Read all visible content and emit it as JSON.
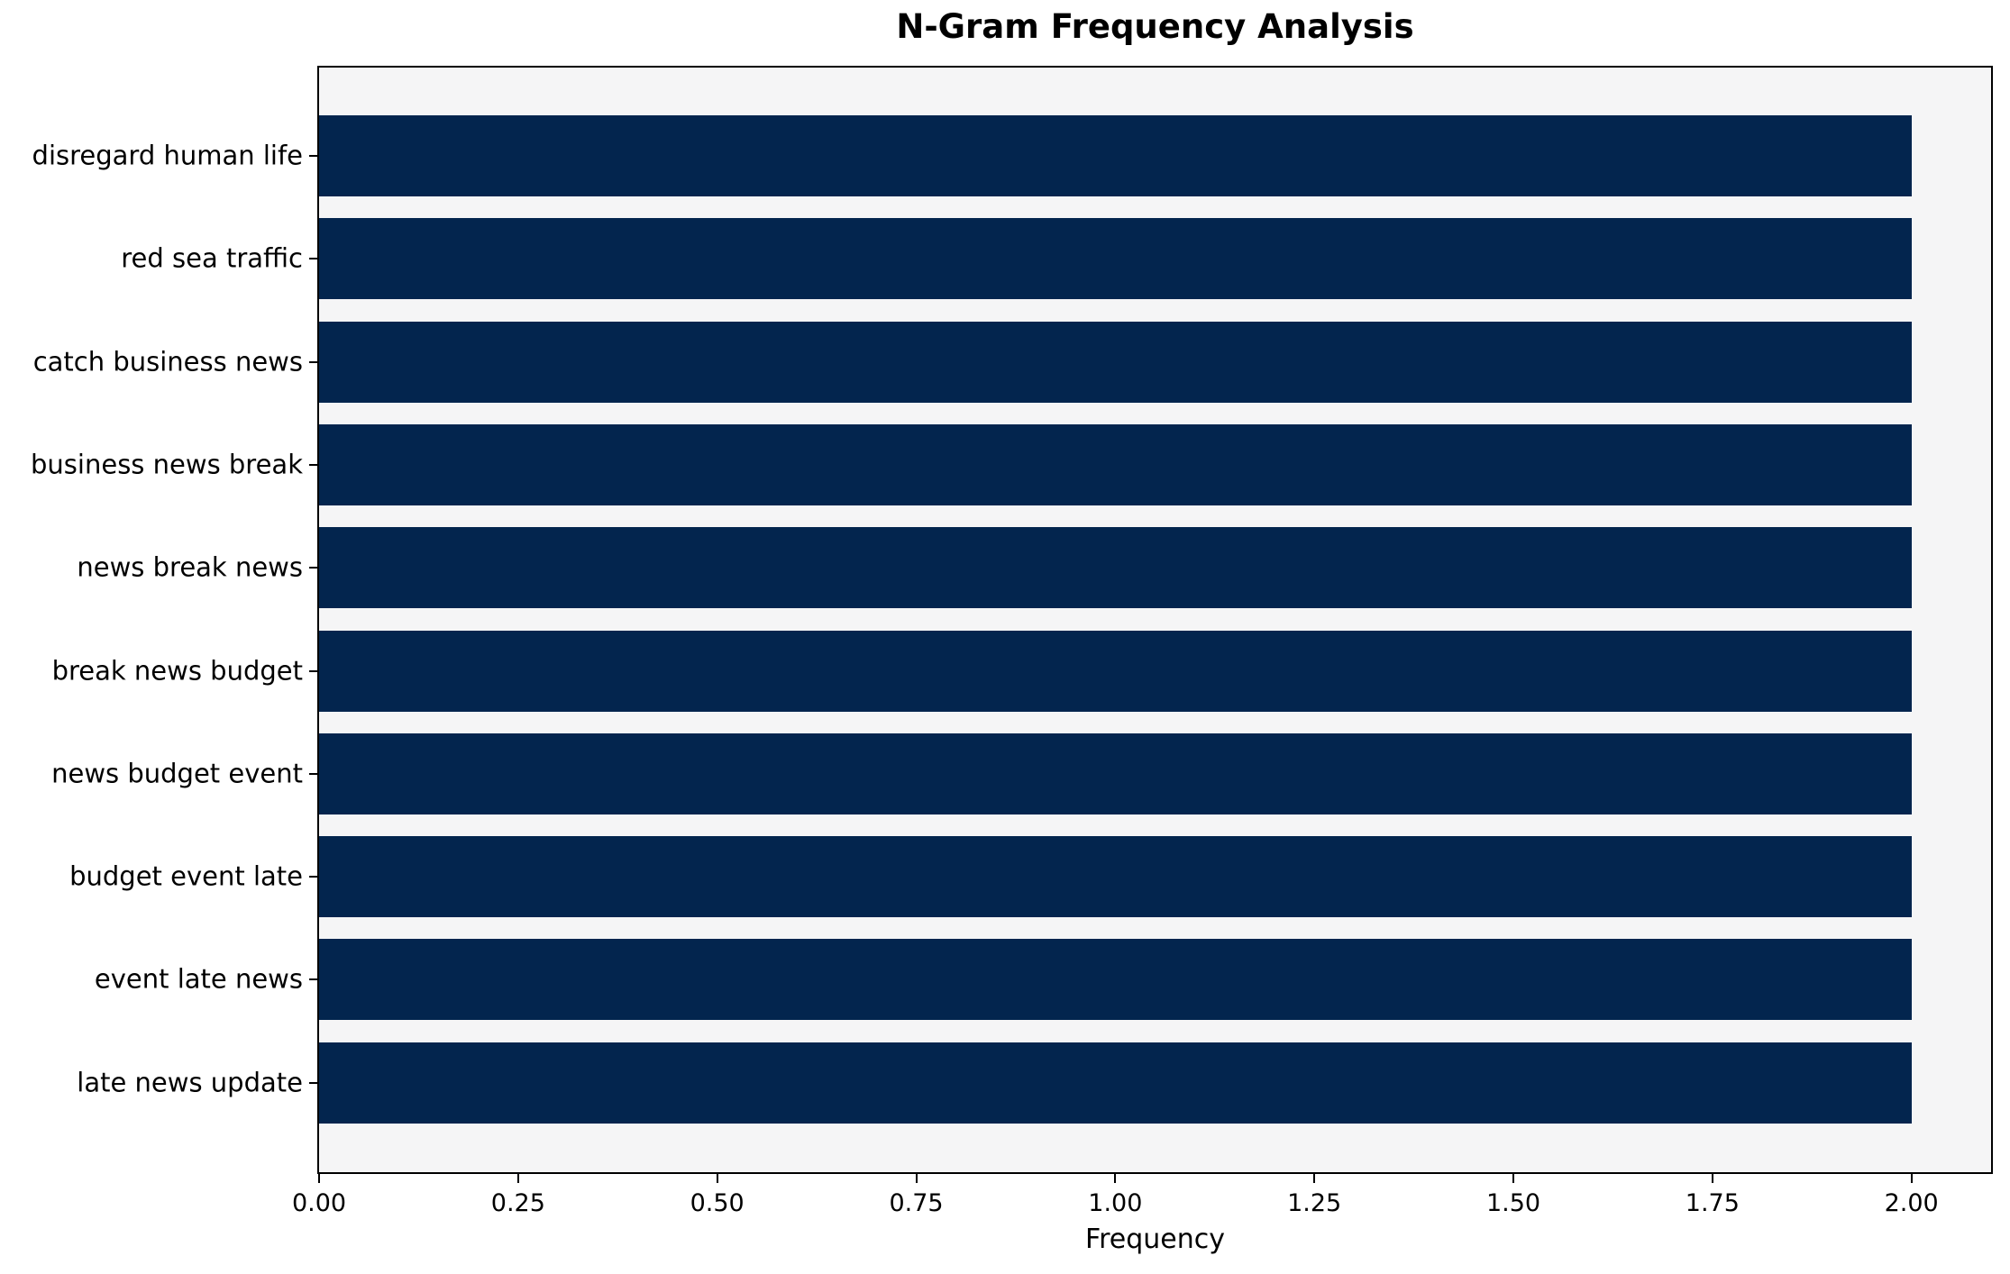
{
  "chart_data": {
    "type": "bar",
    "orientation": "horizontal",
    "title": "N-Gram Frequency Analysis",
    "xlabel": "Frequency",
    "ylabel": "",
    "categories": [
      "disregard human life",
      "red sea traffic",
      "catch business news",
      "business news break",
      "news break news",
      "break news budget",
      "news budget event",
      "budget event late",
      "event late news",
      "late news update"
    ],
    "values": [
      2,
      2,
      2,
      2,
      2,
      2,
      2,
      2,
      2,
      2
    ],
    "xlim": [
      0,
      2.1
    ],
    "xticks": [
      {
        "value": 0.0,
        "label": "0.00"
      },
      {
        "value": 0.25,
        "label": "0.25"
      },
      {
        "value": 0.5,
        "label": "0.50"
      },
      {
        "value": 0.75,
        "label": "0.75"
      },
      {
        "value": 1.0,
        "label": "1.00"
      },
      {
        "value": 1.25,
        "label": "1.25"
      },
      {
        "value": 1.5,
        "label": "1.50"
      },
      {
        "value": 1.75,
        "label": "1.75"
      },
      {
        "value": 2.0,
        "label": "2.00"
      }
    ],
    "grid": false,
    "legend": "none",
    "colors": {
      "bar": "#03254e",
      "plot_bg": "#f5f5f6",
      "figure_bg": "#ffffff",
      "axis": "#000000",
      "text": "#000000"
    }
  }
}
